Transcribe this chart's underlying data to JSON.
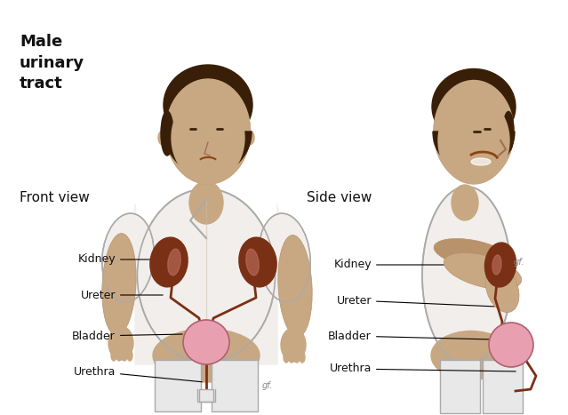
{
  "title": "Male\nurinary\ntract",
  "front_view_label": "Front view",
  "side_view_label": "Side view",
  "bg_color": "#ffffff",
  "skin_color": "#c8a882",
  "skin_dark": "#b8926a",
  "shirt_color": "#f2eeeb",
  "shirt_edge": "#aaaaaa",
  "hair_color": "#3a1f08",
  "kidney_color": "#7a3015",
  "kidney_light": "#c07060",
  "bladder_color": "#e8a0b0",
  "bladder_edge": "#b06070",
  "ureter_color": "#7a3015",
  "pants_color": "#e8e8e8",
  "pants_edge": "#aaaaaa",
  "label_color": "#111111",
  "label_fontsize": 9,
  "title_fontsize": 13,
  "view_label_fontsize": 11,
  "annotation_lw": 0.8
}
